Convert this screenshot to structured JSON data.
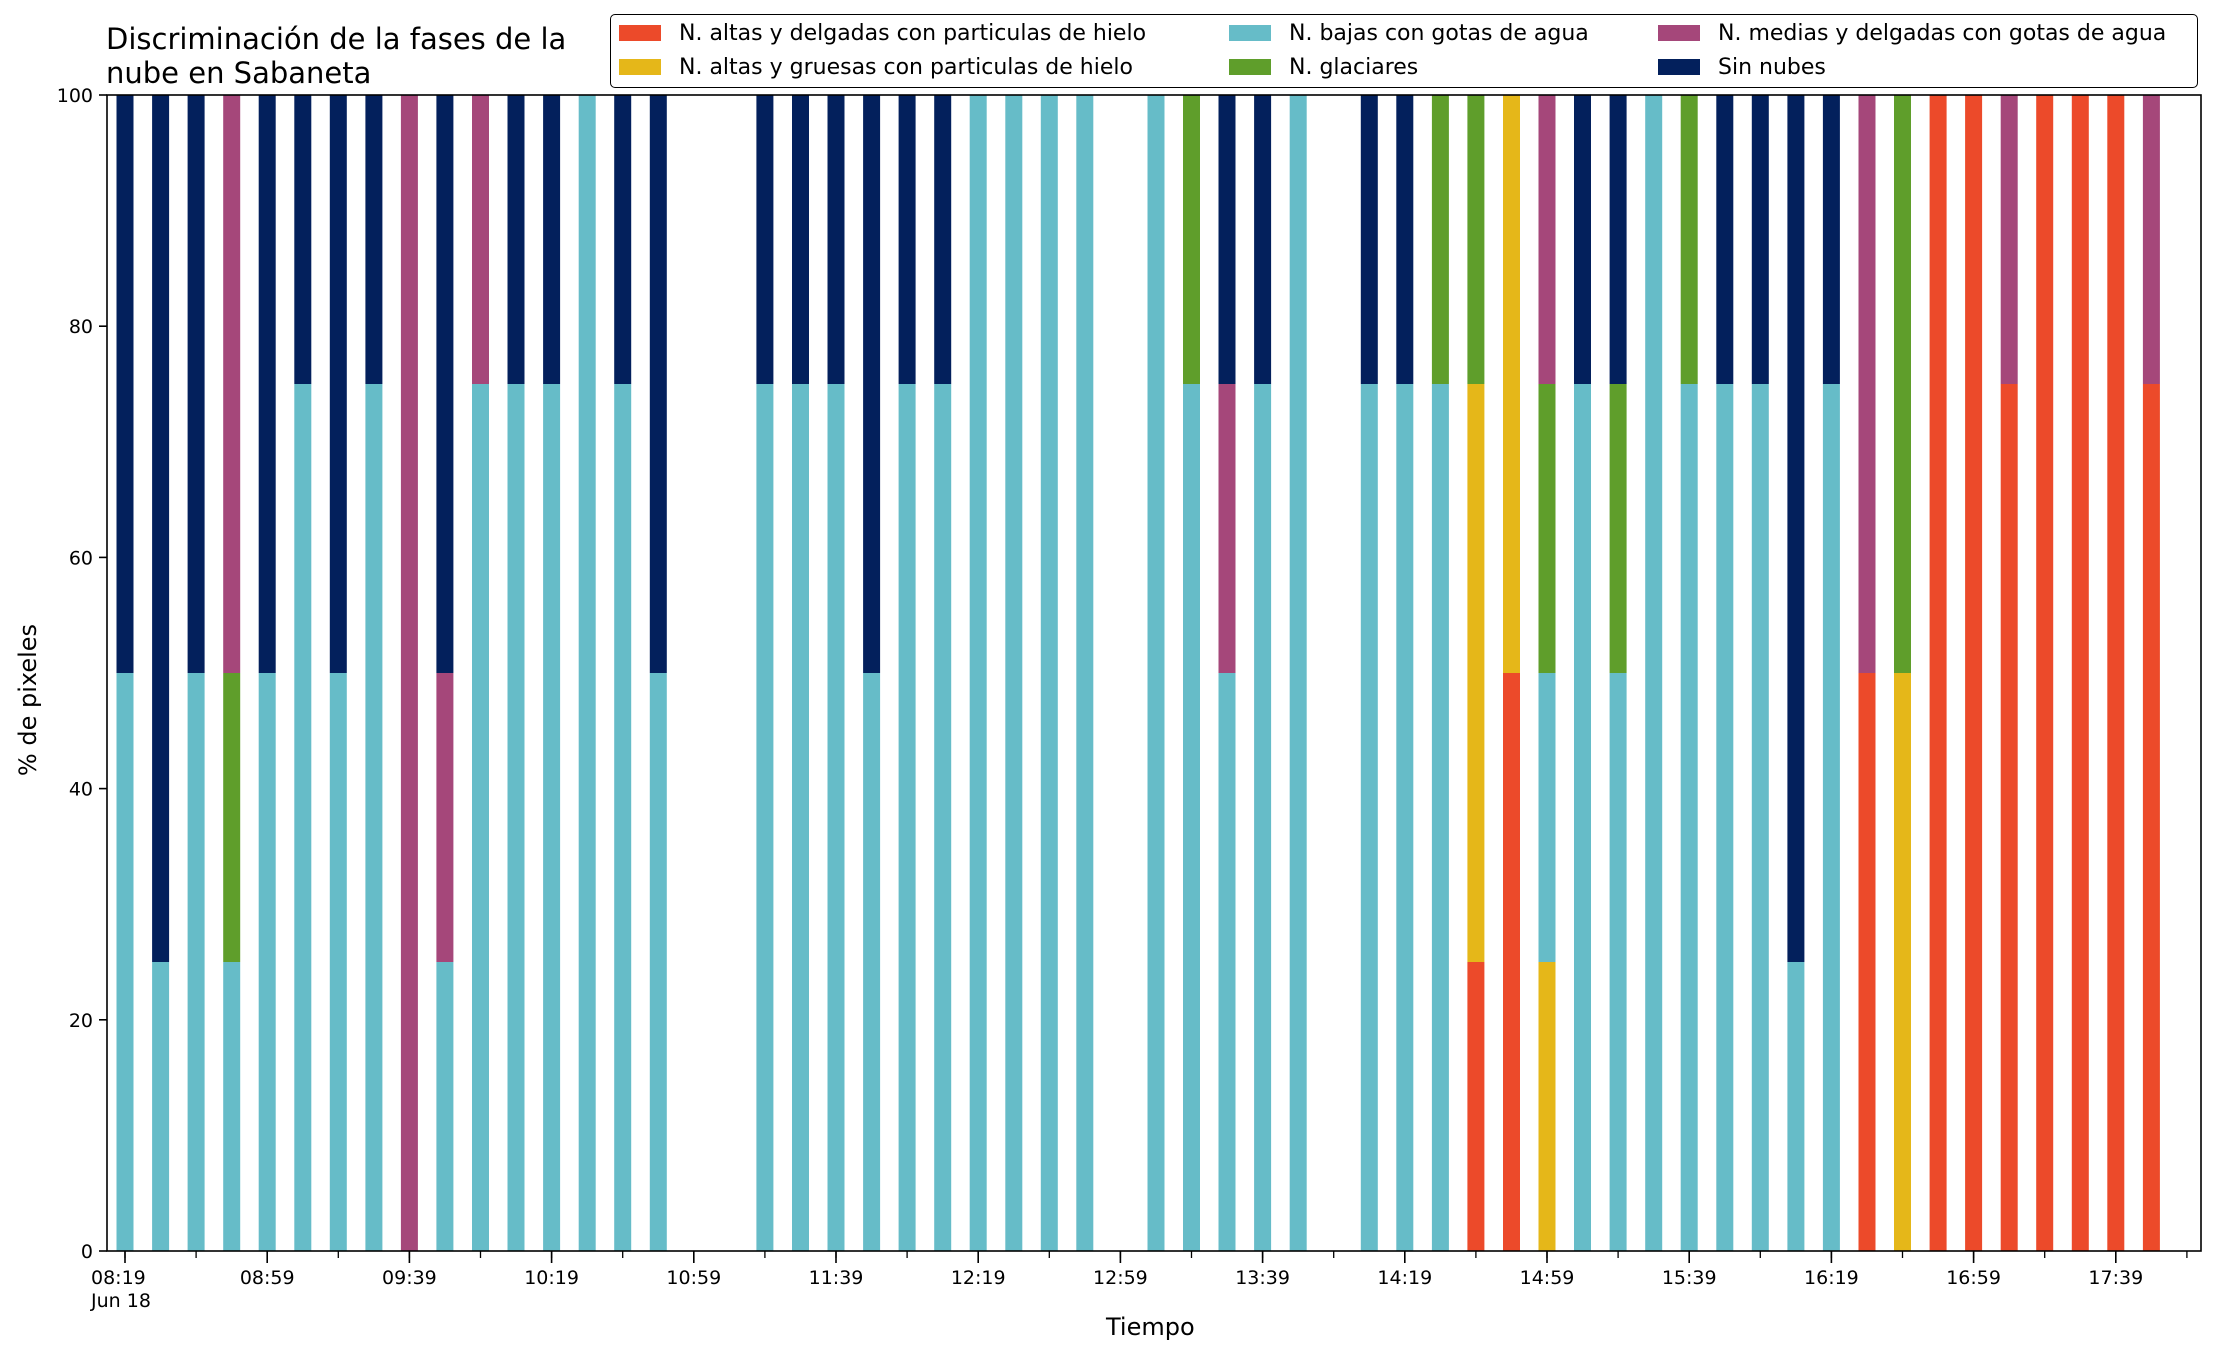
{
  "chart_data": {
    "type": "bar",
    "stacked": true,
    "title": "Discriminación de la fases de la\nnube en Sabaneta",
    "xlabel": "Tiempo",
    "ylabel": "% de pixeles",
    "ylim": [
      0,
      100
    ],
    "yticks": [
      0,
      20,
      40,
      60,
      80,
      100
    ],
    "xticklabels": [
      {
        "time": "08:19",
        "label": "08:19",
        "sublabel": "Jun 18"
      },
      {
        "time": "08:59",
        "label": "08:59"
      },
      {
        "time": "09:39",
        "label": "09:39"
      },
      {
        "time": "10:19",
        "label": "10:19"
      },
      {
        "time": "10:59",
        "label": "10:59"
      },
      {
        "time": "11:39",
        "label": "11:39"
      },
      {
        "time": "12:19",
        "label": "12:19"
      },
      {
        "time": "12:59",
        "label": "12:59"
      },
      {
        "time": "13:39",
        "label": "13:39"
      },
      {
        "time": "14:19",
        "label": "14:19"
      },
      {
        "time": "14:59",
        "label": "14:59"
      },
      {
        "time": "15:39",
        "label": "15:39"
      },
      {
        "time": "16:19",
        "label": "16:19"
      },
      {
        "time": "16:59",
        "label": "16:59"
      },
      {
        "time": "17:39",
        "label": "17:39"
      }
    ],
    "legend_placement": "top-right",
    "series": [
      {
        "key": "altas_delgadas",
        "name": "N. altas y delgadas con particulas de hielo",
        "color": "#ec4a2a"
      },
      {
        "key": "altas_gruesas",
        "name": "N. altas y gruesas con particulas de hielo",
        "color": "#e5b719"
      },
      {
        "key": "bajas",
        "name": "N. bajas con gotas de agua",
        "color": "#66bcc8"
      },
      {
        "key": "glaciares",
        "name": "N. glaciares",
        "color": "#5f9e2b"
      },
      {
        "key": "medias",
        "name": "N. medias y delgadas con gotas de agua",
        "color": "#a5477a"
      },
      {
        "key": "sin_nubes",
        "name": "Sin nubes",
        "color": "#03205c"
      }
    ],
    "stack_order": [
      "altas_delgadas",
      "altas_gruesas",
      "bajas",
      "glaciares",
      "medias",
      "sin_nubes"
    ],
    "bars": [
      {
        "time": "08:19",
        "bajas": 50,
        "sin_nubes": 50
      },
      {
        "time": "08:29",
        "bajas": 25,
        "sin_nubes": 75
      },
      {
        "time": "08:39",
        "bajas": 50,
        "sin_nubes": 50
      },
      {
        "time": "08:49",
        "bajas": 25,
        "glaciares": 25,
        "medias": 50
      },
      {
        "time": "08:59",
        "bajas": 50,
        "sin_nubes": 50
      },
      {
        "time": "09:09",
        "bajas": 75,
        "sin_nubes": 25
      },
      {
        "time": "09:19",
        "bajas": 50,
        "sin_nubes": 50
      },
      {
        "time": "09:29",
        "bajas": 75,
        "sin_nubes": 25
      },
      {
        "time": "09:39",
        "medias": 100
      },
      {
        "time": "09:49",
        "bajas": 25,
        "medias": 25,
        "sin_nubes": 50
      },
      {
        "time": "09:59",
        "bajas": 75,
        "medias": 25
      },
      {
        "time": "10:09",
        "bajas": 75,
        "sin_nubes": 25
      },
      {
        "time": "10:19",
        "bajas": 75,
        "sin_nubes": 25
      },
      {
        "time": "10:29",
        "bajas": 100
      },
      {
        "time": "10:39",
        "bajas": 75,
        "sin_nubes": 25
      },
      {
        "time": "10:49",
        "bajas": 50,
        "sin_nubes": 50
      },
      {
        "time": "11:19",
        "bajas": 75,
        "sin_nubes": 25
      },
      {
        "time": "11:29",
        "bajas": 75,
        "sin_nubes": 25
      },
      {
        "time": "11:39",
        "bajas": 75,
        "sin_nubes": 25
      },
      {
        "time": "11:49",
        "bajas": 50,
        "sin_nubes": 50
      },
      {
        "time": "11:59",
        "bajas": 75,
        "sin_nubes": 25
      },
      {
        "time": "12:09",
        "bajas": 75,
        "sin_nubes": 25
      },
      {
        "time": "12:19",
        "bajas": 100
      },
      {
        "time": "12:29",
        "bajas": 100
      },
      {
        "time": "12:39",
        "bajas": 100
      },
      {
        "time": "12:49",
        "bajas": 100
      },
      {
        "time": "13:09",
        "bajas": 100
      },
      {
        "time": "13:19",
        "bajas": 75,
        "glaciares": 25
      },
      {
        "time": "13:29",
        "bajas": 50,
        "medias": 25,
        "sin_nubes": 25
      },
      {
        "time": "13:39",
        "bajas": 75,
        "sin_nubes": 25
      },
      {
        "time": "13:49",
        "bajas": 100
      },
      {
        "time": "14:09",
        "bajas": 75,
        "sin_nubes": 25
      },
      {
        "time": "14:19",
        "bajas": 75,
        "sin_nubes": 25
      },
      {
        "time": "14:29",
        "bajas": 75,
        "glaciares": 25
      },
      {
        "time": "14:39",
        "altas_delgadas": 25,
        "altas_gruesas": 50,
        "glaciares": 25
      },
      {
        "time": "14:49",
        "altas_delgadas": 50,
        "altas_gruesas": 50
      },
      {
        "time": "14:59",
        "altas_gruesas": 25,
        "bajas": 25,
        "glaciares": 25,
        "medias": 25
      },
      {
        "time": "15:09",
        "bajas": 75,
        "sin_nubes": 25
      },
      {
        "time": "15:19",
        "bajas": 50,
        "glaciares": 25,
        "sin_nubes": 25
      },
      {
        "time": "15:29",
        "bajas": 100
      },
      {
        "time": "15:39",
        "bajas": 75,
        "glaciares": 25
      },
      {
        "time": "15:49",
        "bajas": 75,
        "sin_nubes": 25
      },
      {
        "time": "15:59",
        "bajas": 75,
        "sin_nubes": 25
      },
      {
        "time": "16:09",
        "bajas": 25,
        "sin_nubes": 75
      },
      {
        "time": "16:19",
        "bajas": 75,
        "sin_nubes": 25
      },
      {
        "time": "16:29",
        "altas_delgadas": 50,
        "medias": 50
      },
      {
        "time": "16:39",
        "altas_gruesas": 50,
        "glaciares": 50
      },
      {
        "time": "16:49",
        "altas_delgadas": 100
      },
      {
        "time": "16:59",
        "altas_delgadas": 100
      },
      {
        "time": "17:09",
        "altas_delgadas": 75,
        "medias": 25
      },
      {
        "time": "17:19",
        "altas_delgadas": 100
      },
      {
        "time": "17:29",
        "altas_delgadas": 100
      },
      {
        "time": "17:39",
        "altas_delgadas": 100
      },
      {
        "time": "17:49",
        "altas_delgadas": 75,
        "medias": 25
      }
    ]
  }
}
